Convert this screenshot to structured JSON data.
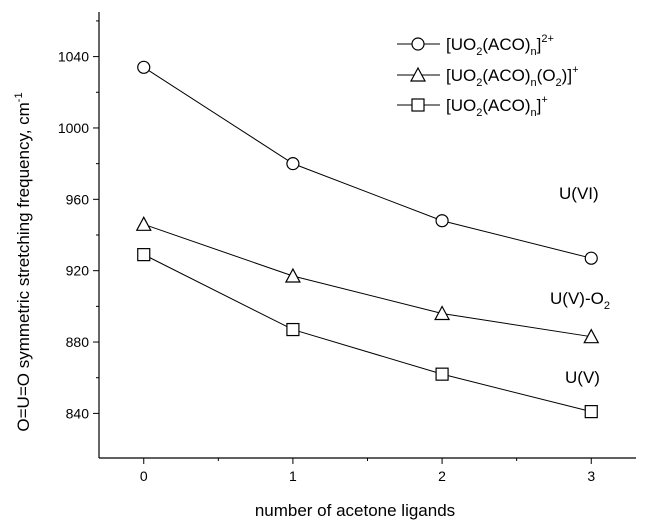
{
  "chart_data": {
    "type": "line",
    "title": "",
    "xlabel": "number of acetone ligands",
    "ylabel": "O=U=O symmetric stretching frequency, cm",
    "ylabel_superscript": "-1",
    "x": [
      0,
      1,
      2,
      3
    ],
    "xticks": [
      "0",
      "1",
      "2",
      "3"
    ],
    "xlim": [
      -0.3,
      3.3
    ],
    "ylim": [
      815,
      1065
    ],
    "yticks": [
      840,
      880,
      920,
      960,
      1000,
      1040
    ],
    "grid": false,
    "legend_position": "top-right",
    "series": [
      {
        "marker": "circle",
        "legend": {
          "pre": "[UO",
          "s1": "2",
          "mid": "(ACO)",
          "s2": "n",
          "post": "]",
          "charge": "2+"
        },
        "label": "U(VI)",
        "values": [
          1034,
          980,
          948,
          927
        ]
      },
      {
        "marker": "triangle",
        "legend": {
          "pre": "[UO",
          "s1": "2",
          "mid": "(ACO)",
          "s2": "n",
          "mid2": "(O",
          "s3": "2",
          "post": ")]",
          "charge": "+"
        },
        "label_main": "U(V)-O",
        "label_sub": "2",
        "values": [
          946,
          917,
          896,
          883
        ]
      },
      {
        "marker": "square",
        "legend": {
          "pre": "[UO",
          "s1": "2",
          "mid": "(ACO)",
          "s2": "n",
          "post": "]",
          "charge": "+"
        },
        "label": "U(V)",
        "values": [
          929,
          887,
          862,
          841
        ]
      }
    ]
  }
}
